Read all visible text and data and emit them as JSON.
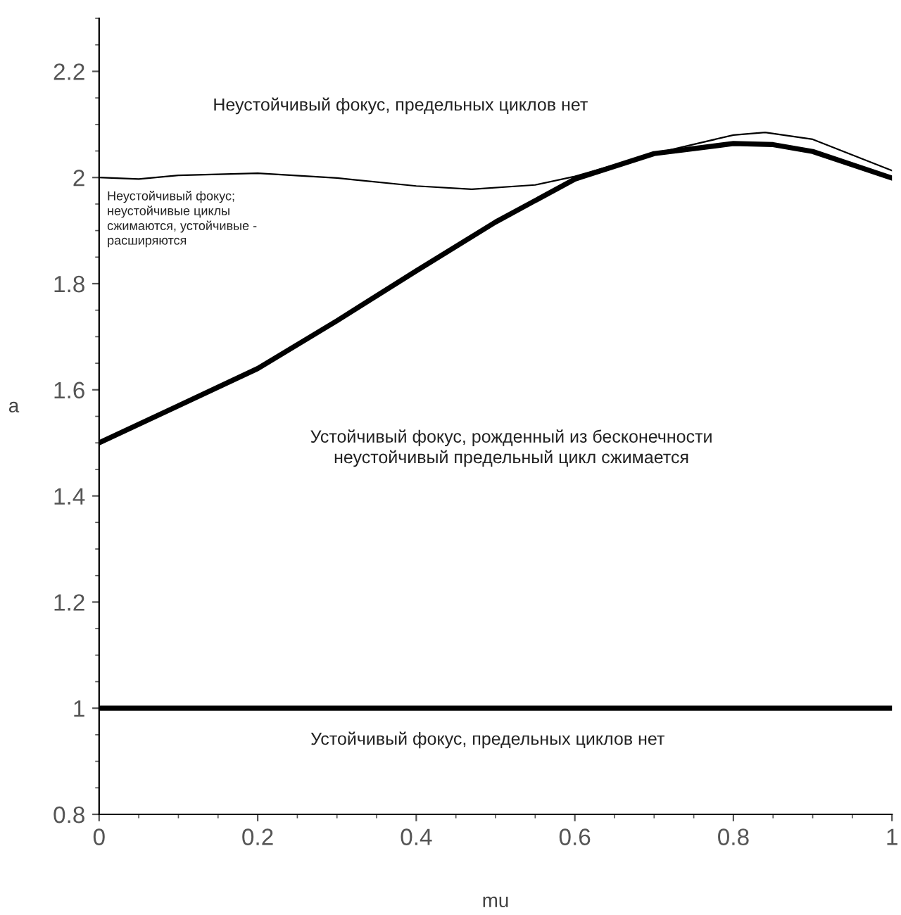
{
  "chart_data": {
    "type": "line",
    "xlabel": "mu",
    "ylabel": "a",
    "xlim": [
      0,
      1
    ],
    "ylim": [
      0.8,
      2.3
    ],
    "xticks": [
      0,
      0.2,
      0.4,
      0.6,
      0.8,
      1
    ],
    "yticks": [
      0.8,
      1,
      1.2,
      1.4,
      1.6,
      1.8,
      2,
      2.2
    ],
    "grid": false,
    "legend": false,
    "marker": "none",
    "line_style": "solid",
    "series": [
      {
        "color": "#000000",
        "x": [
          0,
          0.05,
          0.1,
          0.2,
          0.3,
          0.4,
          0.47,
          0.55,
          0.6,
          0.7,
          0.8,
          0.84,
          0.9,
          1
        ],
        "values": [
          2.0,
          1.997,
          2.004,
          2.008,
          1.999,
          1.984,
          1.978,
          1.986,
          2.002,
          2.045,
          2.08,
          2.085,
          2.072,
          2.013
        ]
      },
      {
        "color": "#000000",
        "x": [
          0,
          0.1,
          0.2,
          0.3,
          0.4,
          0.5,
          0.6,
          0.7,
          0.8,
          0.85,
          0.9,
          1
        ],
        "values": [
          1.5,
          1.57,
          1.64,
          1.73,
          1.824,
          1.916,
          1.997,
          2.045,
          2.064,
          2.062,
          2.049,
          1.999
        ]
      },
      {
        "color": "#000000",
        "x": [
          0,
          1
        ],
        "values": [
          1,
          1
        ]
      }
    ],
    "annotations": [
      "Неустойчивый фокус, предельных циклов нет",
      "Неустойчивый фокус;\nнеустойчивые циклы\nсжимаются, устойчивые -\nрасширяются",
      "Устойчивый фокус, рожденный из бесконечности\nнеустойчивый предельный цикл сжимается",
      "Устойчивый фокус, предельных циклов нет"
    ]
  }
}
